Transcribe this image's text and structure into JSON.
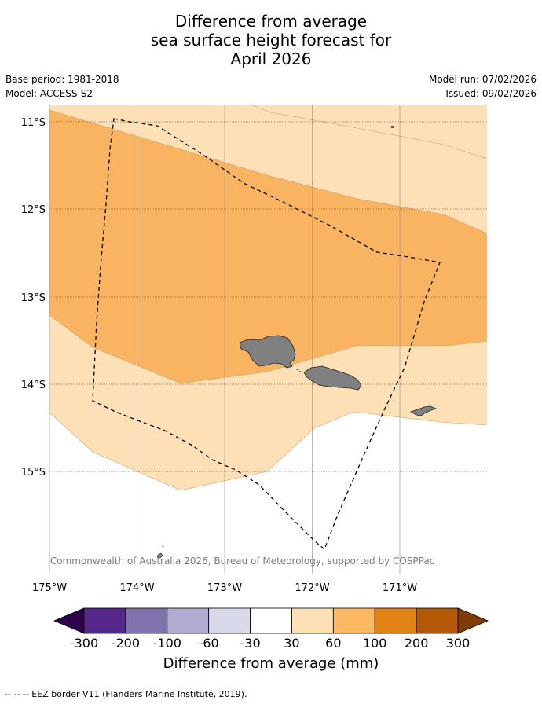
{
  "title": {
    "line1": "Difference from average",
    "line2": "sea surface height forecast for",
    "line3": "April 2026"
  },
  "meta": {
    "base_period": "Base period: 1981-2018",
    "model": "Model: ACCESS-S2",
    "model_run": "Model run: 07/02/2026",
    "issued": "Issued: 09/02/2026"
  },
  "map": {
    "lat_labels": [
      "11°S",
      "12°S",
      "13°S",
      "14°S",
      "15°S"
    ],
    "lon_labels": [
      "175°W",
      "174°W",
      "173°W",
      "172°W",
      "171°W"
    ],
    "copyright": "© Commonwealth of Australia 2026, Bureau of Meteorology, supported by COSPPac",
    "band_colors": {
      "light": "#fde0b6",
      "medium": "#f9b462"
    },
    "land_color": "#808080"
  },
  "colorbar": {
    "ticks": [
      "-300",
      "-200",
      "-100",
      "-60",
      "-30",
      "30",
      "60",
      "100",
      "200",
      "300"
    ],
    "colors": [
      "#2d004b",
      "#542788",
      "#8073ac",
      "#b2abd2",
      "#d8daeb",
      "#ffffff",
      "#fee0b6",
      "#fdb863",
      "#e08214",
      "#b35806",
      "#7f3b08"
    ],
    "label": "Difference from average (mm)"
  },
  "footer": "--  --  -- EEZ border V11 (Flanders Marine Institute, 2019)."
}
